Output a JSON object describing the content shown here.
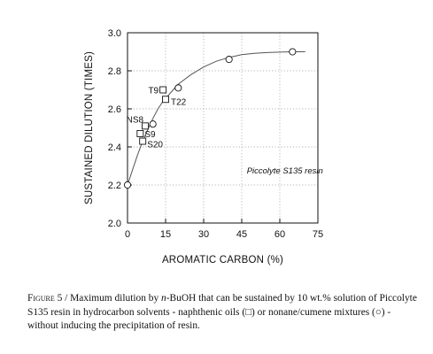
{
  "chart_data": {
    "type": "scatter",
    "xlabel": "AROMATIC CARBON (%)",
    "ylabel": "SUSTAINED DILUTION (TIMES)",
    "xlim": [
      0,
      75
    ],
    "ylim": [
      2.0,
      3.0
    ],
    "x_ticks": [
      "0",
      "15",
      "30",
      "45",
      "60",
      "75"
    ],
    "y_ticks": [
      "2.0",
      "2.2",
      "2.4",
      "2.6",
      "2.8",
      "3.0"
    ],
    "grid": true,
    "annotation": "Piccolyte S135 resin",
    "series": [
      {
        "marker": "square",
        "points": [
          {
            "x": 14,
            "y": 2.7,
            "label": "T9"
          },
          {
            "x": 15,
            "y": 2.65,
            "label": "T22"
          },
          {
            "x": 7,
            "y": 2.51,
            "label": "NS8"
          },
          {
            "x": 5,
            "y": 2.47,
            "label": "S9"
          },
          {
            "x": 6,
            "y": 2.43,
            "label": "S20"
          }
        ]
      },
      {
        "marker": "circle",
        "points": [
          {
            "x": 0,
            "y": 2.2
          },
          {
            "x": 10,
            "y": 2.52
          },
          {
            "x": 20,
            "y": 2.71
          },
          {
            "x": 40,
            "y": 2.86
          },
          {
            "x": 65,
            "y": 2.9
          }
        ]
      }
    ],
    "fit_curve": {
      "x": [
        0,
        2,
        4,
        6,
        8,
        10,
        12,
        14,
        16,
        18,
        20,
        25,
        30,
        35,
        40,
        45,
        50,
        55,
        60,
        65,
        70
      ],
      "y": [
        2.2,
        2.28,
        2.36,
        2.43,
        2.49,
        2.55,
        2.6,
        2.64,
        2.67,
        2.7,
        2.73,
        2.78,
        2.82,
        2.85,
        2.87,
        2.885,
        2.892,
        2.896,
        2.898,
        2.9,
        2.9
      ]
    }
  },
  "caption": {
    "prefix_sc": "Figure",
    "part1": " 5 / Maximum dilution by ",
    "italic": "n",
    "part2": "-BuOH that can be sustained by 10 wt.% solution of Piccolyte S135 resin in hydrocarbon solvents - naphthenic oils (",
    "symbol1": "□",
    "part3": ") or nonane/cumene mixtures (",
    "symbol2": "○",
    "part4": ") - without inducing the precipitation of resin."
  }
}
